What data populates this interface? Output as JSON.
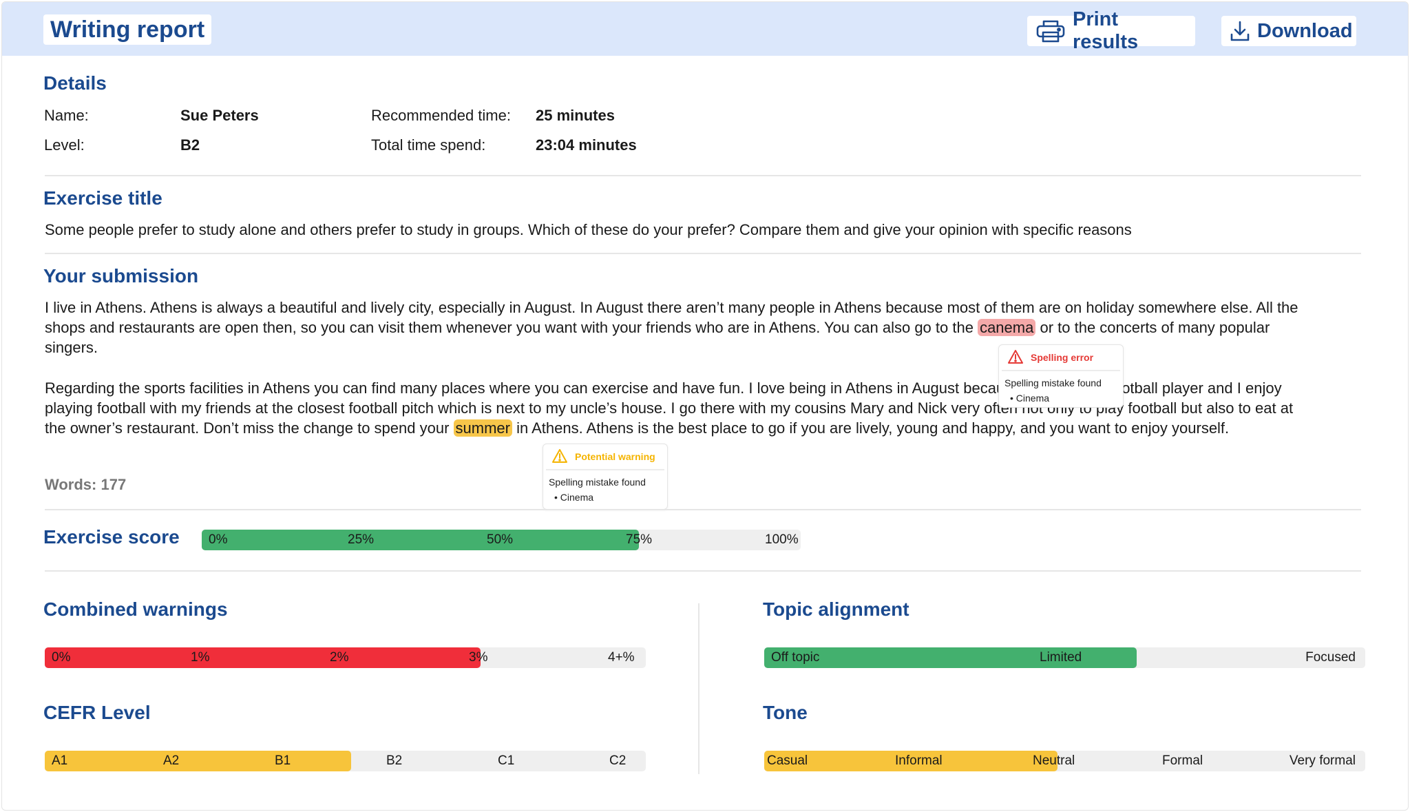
{
  "header": {
    "title": "Writing report",
    "print_label": "Print results",
    "download_label": "Download"
  },
  "details": {
    "heading": "Details",
    "name_label": "Name:",
    "name_value": "Sue Peters",
    "level_label": "Level:",
    "level_value": "B2",
    "rec_time_label": "Recommended time:",
    "rec_time_value": "25 minutes",
    "total_time_label": "Total time spend:",
    "total_time_value": "23:04 minutes"
  },
  "exercise": {
    "heading": "Exercise title",
    "text": "Some people prefer to study alone and others prefer to study in groups. Which of these do your prefer? Compare them and give your opinion with specific reasons"
  },
  "submission": {
    "heading": "Your submission",
    "p1_before": "I live in Athens. Athens is always a beautiful and lively city, especially in August. In August there aren’t many people in Athens because most of them are on holiday somewhere else. All the shops and restaurants are open then, so you can visit them whenever you want with your friends who are in Athens. You can also go to the ",
    "p1_error_word": "canema",
    "p1_after": " or to the concerts of many popular singers.",
    "p2_before": "Regarding the sports facilities in Athens you can find many places where you can exercise and have fun. I love being in Athens in August because I am a good football player and I enjoy playing football with my friends at the closest football pitch which is next to my uncle’s house. I go there with my cousins Mary and Nick very often not only to play football but also to eat at the owner’s restaurant. Don’t miss the change to spend your ",
    "p2_warn_word": "summer",
    "p2_after": " in Athens. Athens is the best place to go if you are lively, young and happy, and you want to enjoy yourself.",
    "words": "Words: 177"
  },
  "tooltips": {
    "error": {
      "title": "Spelling error",
      "body": "Spelling mistake found",
      "bullet": "•  Cinema",
      "color": "#e53935"
    },
    "warning": {
      "title": "Potential warning",
      "body": "Spelling mistake found",
      "bullet": "•  Cinema",
      "color": "#f5b400"
    }
  },
  "scores": {
    "exercise": {
      "heading": "Exercise score",
      "ticks": [
        "0%",
        "25%",
        "50%",
        "75%",
        "100%"
      ],
      "fill_fraction": 0.73,
      "color": "#43b06e"
    },
    "warnings": {
      "heading": "Combined warnings",
      "ticks": [
        "0%",
        "1%",
        "2%",
        "3%",
        "4+%"
      ],
      "fill_fraction": 0.725,
      "color": "#f02e3a"
    },
    "cefr": {
      "heading": "CEFR Level",
      "ticks": [
        "A1",
        "A2",
        "B1",
        "B2",
        "C1",
        "C2"
      ],
      "fill_fraction": 0.51,
      "color": "#f7c43b"
    },
    "topic": {
      "heading": "Topic alignment",
      "ticks": [
        "Off topic",
        "Limited",
        "Focused"
      ],
      "fill_fraction": 0.62,
      "color": "#43b06e"
    },
    "tone": {
      "heading": "Tone",
      "ticks": [
        "Casual",
        "Informal",
        "Neutral",
        "Formal",
        "Very formal"
      ],
      "fill_fraction": 0.488,
      "color": "#f7c43b"
    }
  }
}
